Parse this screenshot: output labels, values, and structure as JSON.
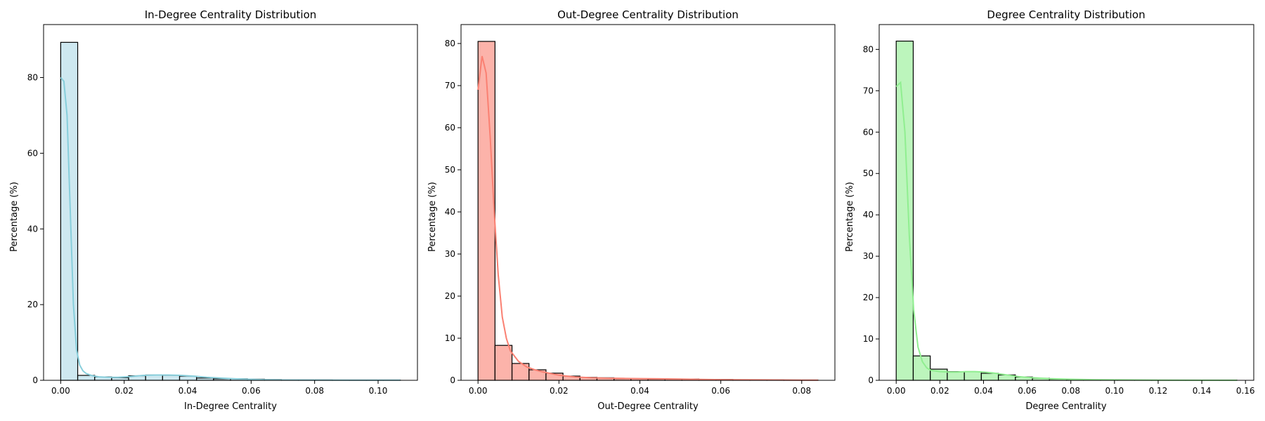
{
  "chart_data": [
    {
      "type": "bar",
      "title": "In-Degree Centrality Distribution",
      "xlabel": "In-Degree Centrality",
      "ylabel": "Percentage (%)",
      "xlim": [
        -0.0054,
        0.1124
      ],
      "ylim": [
        0,
        94
      ],
      "xticks": [
        0.0,
        0.02,
        0.04,
        0.06,
        0.08,
        0.1
      ],
      "xtick_labels": [
        "0.00",
        "0.02",
        "0.04",
        "0.06",
        "0.08",
        "0.10"
      ],
      "yticks": [
        0,
        20,
        40,
        60,
        80
      ],
      "ytick_labels": [
        "0",
        "20",
        "40",
        "60",
        "80"
      ],
      "bin_edges": [
        0.0,
        0.00535,
        0.0107,
        0.01605,
        0.0214,
        0.02675,
        0.0321,
        0.03745,
        0.0428,
        0.04815,
        0.0535,
        0.05885,
        0.0642,
        0.06955,
        0.0749,
        0.08025,
        0.0856,
        0.09095,
        0.0963,
        0.10165,
        0.107
      ],
      "values": [
        89.3,
        1.3,
        0.9,
        0.7,
        1.2,
        1.4,
        1.3,
        1.1,
        0.6,
        0.4,
        0.4,
        0.3,
        0.2,
        0.1,
        0.1,
        0.1,
        0.05,
        0.05,
        0.05,
        0.05
      ],
      "kde": {
        "x": [
          0.0,
          0.001,
          0.002,
          0.003,
          0.004,
          0.005,
          0.006,
          0.007,
          0.008,
          0.01,
          0.012,
          0.015,
          0.018,
          0.022,
          0.026,
          0.03,
          0.034,
          0.038,
          0.042,
          0.046,
          0.05,
          0.055,
          0.06,
          0.065,
          0.07,
          0.08,
          0.09,
          0.1,
          0.107
        ],
        "y": [
          80,
          79,
          70,
          45,
          20,
          8,
          4,
          2.5,
          1.8,
          1.2,
          0.9,
          0.8,
          0.8,
          1.0,
          1.3,
          1.4,
          1.4,
          1.3,
          1.1,
          0.8,
          0.6,
          0.4,
          0.25,
          0.15,
          0.1,
          0.06,
          0.05,
          0.04,
          0.04
        ]
      },
      "colors": {
        "fill": "#add8e6",
        "line": "#87cedb",
        "edge": "#000000"
      }
    },
    {
      "type": "bar",
      "title": "Out-Degree Centrality Distribution",
      "xlabel": "Out-Degree Centrality",
      "ylabel": "Percentage (%)",
      "xlim": [
        -0.0042,
        0.0882
      ],
      "ylim": [
        0,
        84.5
      ],
      "xticks": [
        0.0,
        0.02,
        0.04,
        0.06,
        0.08
      ],
      "xtick_labels": [
        "0.00",
        "0.02",
        "0.04",
        "0.06",
        "0.08"
      ],
      "yticks": [
        0,
        10,
        20,
        30,
        40,
        50,
        60,
        70,
        80
      ],
      "ytick_labels": [
        "0",
        "10",
        "20",
        "30",
        "40",
        "50",
        "60",
        "70",
        "80"
      ],
      "bin_edges": [
        0.0,
        0.0042,
        0.0084,
        0.0126,
        0.0168,
        0.021,
        0.0252,
        0.0294,
        0.0336,
        0.0378,
        0.042,
        0.0462,
        0.0504,
        0.0546,
        0.0588,
        0.063,
        0.0672,
        0.0714,
        0.0756,
        0.0798,
        0.084
      ],
      "values": [
        80.5,
        8.3,
        4.0,
        2.5,
        1.7,
        1.0,
        0.7,
        0.6,
        0.4,
        0.4,
        0.3,
        0.3,
        0.3,
        0.2,
        0.2,
        0.1,
        0.1,
        0.1,
        0.05,
        0.05
      ],
      "kde": {
        "x": [
          0.0,
          0.001,
          0.002,
          0.003,
          0.004,
          0.005,
          0.006,
          0.007,
          0.008,
          0.01,
          0.012,
          0.014,
          0.016,
          0.018,
          0.02,
          0.024,
          0.028,
          0.032,
          0.036,
          0.04,
          0.045,
          0.05,
          0.055,
          0.06,
          0.07,
          0.08,
          0.084
        ],
        "y": [
          69,
          77,
          73,
          58,
          40,
          25,
          15,
          10,
          7,
          4.5,
          3.2,
          2.5,
          2.0,
          1.6,
          1.2,
          0.8,
          0.6,
          0.5,
          0.45,
          0.4,
          0.35,
          0.3,
          0.2,
          0.15,
          0.1,
          0.05,
          0.05
        ]
      },
      "colors": {
        "fill": "#fa8072",
        "line": "#fa8072",
        "edge": "#000000"
      }
    },
    {
      "type": "bar",
      "title": "Degree Centrality Distribution",
      "xlabel": "Degree Centrality",
      "ylabel": "Percentage (%)",
      "xlim": [
        -0.0078,
        0.1638
      ],
      "ylim": [
        0,
        86
      ],
      "xticks": [
        0.0,
        0.02,
        0.04,
        0.06,
        0.08,
        0.1,
        0.12,
        0.14,
        0.16
      ],
      "xtick_labels": [
        "0.00",
        "0.02",
        "0.04",
        "0.06",
        "0.08",
        "0.10",
        "0.12",
        "0.14",
        "0.16"
      ],
      "yticks": [
        0,
        10,
        20,
        30,
        40,
        50,
        60,
        70,
        80
      ],
      "ytick_labels": [
        "0",
        "10",
        "20",
        "30",
        "40",
        "50",
        "60",
        "70",
        "80"
      ],
      "bin_edges": [
        0.0,
        0.0078,
        0.0156,
        0.0234,
        0.0312,
        0.039,
        0.0468,
        0.0546,
        0.0624,
        0.0702,
        0.078,
        0.0858,
        0.0936,
        0.1014,
        0.1092,
        0.117,
        0.1248,
        0.1326,
        0.1404,
        0.1482,
        0.156
      ],
      "values": [
        82.0,
        5.9,
        2.7,
        2.1,
        2.1,
        1.7,
        1.3,
        0.8,
        0.5,
        0.3,
        0.2,
        0.1,
        0.1,
        0.05,
        0.05,
        0.05,
        0.05,
        0.05,
        0.05,
        0.05
      ],
      "kde": {
        "x": [
          0.0,
          0.002,
          0.004,
          0.006,
          0.008,
          0.01,
          0.012,
          0.014,
          0.016,
          0.02,
          0.024,
          0.028,
          0.032,
          0.036,
          0.04,
          0.044,
          0.048,
          0.052,
          0.056,
          0.06,
          0.07,
          0.08,
          0.09,
          0.1,
          0.12,
          0.14,
          0.156
        ],
        "y": [
          71,
          72,
          60,
          35,
          17,
          8,
          4.5,
          3.0,
          2.4,
          2.1,
          2.0,
          2.0,
          2.1,
          2.1,
          2.0,
          1.8,
          1.5,
          1.2,
          0.9,
          0.7,
          0.4,
          0.25,
          0.15,
          0.1,
          0.05,
          0.03,
          0.03
        ]
      },
      "colors": {
        "fill": "#90ee90",
        "line": "#90ee90",
        "edge": "#000000"
      }
    }
  ]
}
